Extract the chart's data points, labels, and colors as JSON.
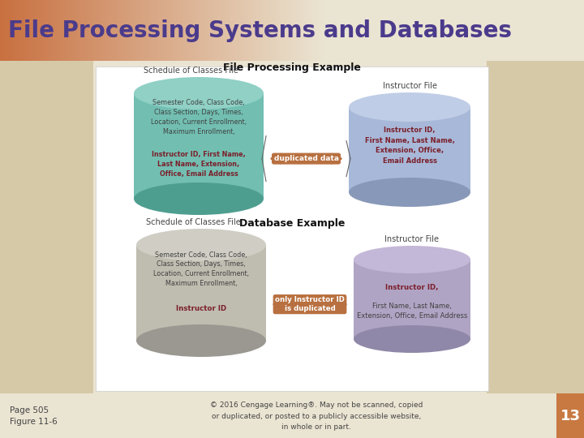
{
  "title": "File Processing Systems and Databases",
  "title_color": "#4B3B8C",
  "slide_bg": "#EAE4D2",
  "tan_strip": "#D6C9A8",
  "header_orange": "#C87040",
  "white_box_bg": "#FFFFFF",
  "copyright_text": "© 2016 Cengage Learning®. May not be scanned, copied\nor duplicated, or posted to a publicly accessible website,\nin whole or in part.",
  "page_label": "Page 505\nFigure 11-6",
  "slide_number": "13",
  "slide_num_bg": "#C87941",
  "fp_example_title": "File Processing Example",
  "db_example_title": "Database Example",
  "soc_label_top": "Schedule of Classes File",
  "soc_label_bot": "Schedule of Classes File",
  "inst_label_top": "Instructor File",
  "inst_label_bot": "Instructor File",
  "cyl_teal_body": "#72BFB2",
  "cyl_teal_top": "#90D0C5",
  "cyl_teal_dark": "#4E9E90",
  "cyl_blue_body": "#A8B8D8",
  "cyl_blue_top": "#C0CDE6",
  "cyl_blue_dark": "#8898B8",
  "cyl_gray_body": "#BFBCB0",
  "cyl_gray_top": "#D0CEC4",
  "cyl_gray_dark": "#9A9890",
  "cyl_purple_body": "#B0A4C4",
  "cyl_purple_top": "#C4B8D8",
  "cyl_purple_dark": "#9088A8",
  "arrow_color": "#B87040",
  "arrow_label_top": "duplicated data",
  "arrow_label_bot": "only Instructor ID\nis duplicated",
  "normal_text": "#404040",
  "bold_text": "#7B1F2A",
  "soc_normal_top": "Semester Code, Class Code,\nClass Section, Days, Times,\nLocation, Current Enrollment,\nMaximum Enrollment,",
  "soc_bold_top": "Instructor ID, First Name,\nLast Name, Extension,\nOffice, Email Address",
  "soc_normal_bot": "Semester Code, Class Code,\nClass Section, Days, Times,\nLocation, Current Enrollment,\nMaximum Enrollment,",
  "soc_bold_bot": "Instructor ID",
  "inst_bold_top": "Instructor ID,\nFirst Name, Last Name,\nExtension, Office,\nEmail Address",
  "inst_normal_bot": "First Name, Last Name,\nExtension, Office, Email Address",
  "inst_bold_bot_header": "Instructor ID,"
}
